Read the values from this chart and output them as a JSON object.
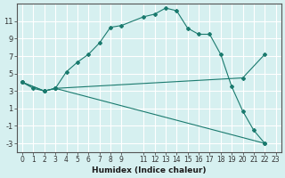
{
  "xlabel": "Humidex (Indice chaleur)",
  "bg_color": "#d6f0f0",
  "grid_color": "#ffffff",
  "line_color": "#1a7a6e",
  "xlim": [
    -0.5,
    23.5
  ],
  "ylim": [
    -4,
    13
  ],
  "yticks": [
    -3,
    -1,
    1,
    3,
    5,
    7,
    9,
    11
  ],
  "xticks": [
    0,
    1,
    2,
    3,
    4,
    5,
    6,
    7,
    8,
    9,
    11,
    12,
    13,
    14,
    15,
    16,
    17,
    18,
    19,
    20,
    21,
    22,
    23
  ],
  "line1_x": [
    0,
    1,
    2,
    3,
    4,
    5,
    6,
    7,
    8,
    9,
    11,
    12,
    13,
    14,
    15,
    16,
    17,
    18,
    19,
    20,
    21,
    22
  ],
  "line1_y": [
    4,
    3.3,
    3,
    3.3,
    5.2,
    6.3,
    7.2,
    8.5,
    10.3,
    10.5,
    11.5,
    11.8,
    12.5,
    12.2,
    10.2,
    9.5,
    9.5,
    7.2,
    3.5,
    0.7,
    -1.5,
    -3
  ],
  "line2_x": [
    0,
    2,
    3,
    22
  ],
  "line2_y": [
    4,
    3,
    3.3,
    -3
  ],
  "line3_x": [
    0,
    2,
    3,
    20,
    22
  ],
  "line3_y": [
    4,
    3,
    3.3,
    4.5,
    7.2
  ]
}
